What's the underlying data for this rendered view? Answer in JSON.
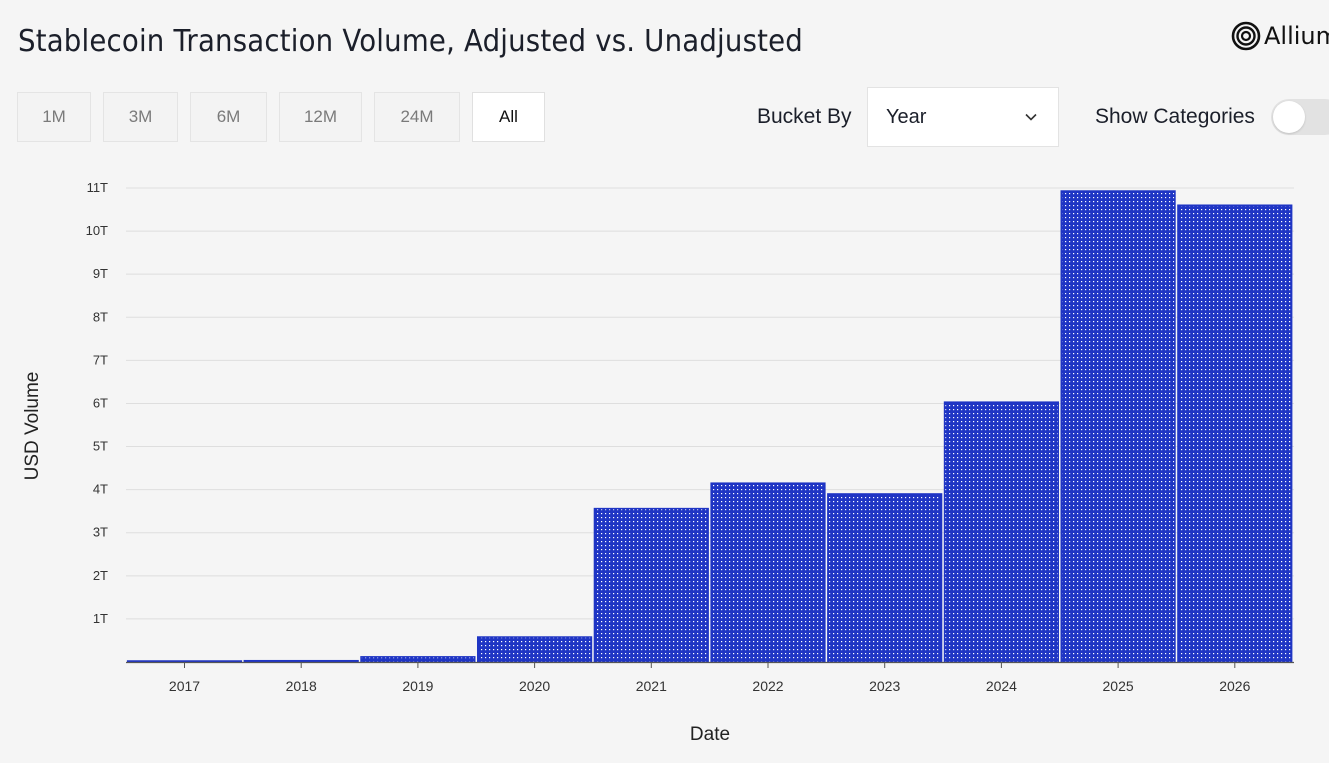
{
  "header": {
    "title": "Stablecoin Transaction Volume, Adjusted vs. Unadjusted",
    "logo_text": "Allium"
  },
  "controls": {
    "ranges": [
      "1M",
      "3M",
      "6M",
      "12M",
      "24M",
      "All"
    ],
    "active_range": "All",
    "bucket_label": "Bucket By",
    "bucket_value": "Year",
    "show_categories_label": "Show Categories",
    "show_categories_on": false
  },
  "colors": {
    "bar": "#1f35c4",
    "bar_dots": "#ffffff",
    "grid": "#dedede",
    "axis": "#555555"
  },
  "chart_data": {
    "type": "bar",
    "title": "",
    "xlabel": "Date",
    "ylabel": "USD Volume",
    "categories": [
      "2017",
      "2018",
      "2019",
      "2020",
      "2021",
      "2022",
      "2023",
      "2024",
      "2025",
      "2026"
    ],
    "values": [
      0.01,
      0.03,
      0.12,
      0.58,
      3.56,
      4.15,
      3.9,
      6.03,
      10.93,
      10.6
    ],
    "unit": "T",
    "ylim": [
      0,
      11
    ],
    "yticks": [
      "1T",
      "2T",
      "3T",
      "4T",
      "5T",
      "6T",
      "7T",
      "8T",
      "9T",
      "10T",
      "11T"
    ],
    "grid": true,
    "legend": "none"
  }
}
